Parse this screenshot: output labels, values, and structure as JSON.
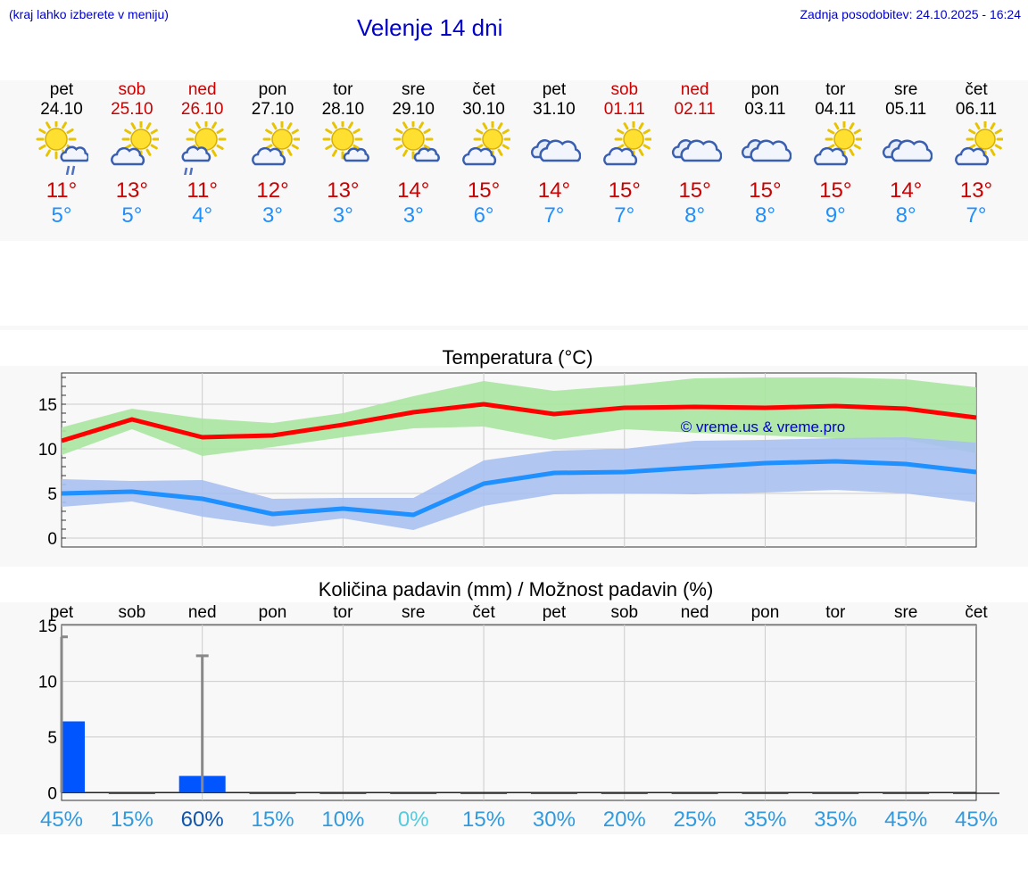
{
  "header": {
    "hint": "(kraj lahko izberete v meniju)",
    "title": "Velenje 14 dni",
    "updated": "Zadnja posodobitev: 24.10.2025 - 16:24"
  },
  "days": [
    {
      "name": "pet",
      "date": "24.10",
      "weekend": false,
      "icon": "partly-cloudy-rain-icon",
      "tmax": "11°",
      "tmin": "5°",
      "precip_pct": "45%"
    },
    {
      "name": "sob",
      "date": "25.10",
      "weekend": true,
      "icon": "partly-cloudy-icon",
      "tmax": "13°",
      "tmin": "5°",
      "precip_pct": "15%"
    },
    {
      "name": "ned",
      "date": "26.10",
      "weekend": true,
      "icon": "sun-rain-icon",
      "tmax": "11°",
      "tmin": "4°",
      "precip_pct": "60%"
    },
    {
      "name": "pon",
      "date": "27.10",
      "weekend": false,
      "icon": "partly-cloudy-icon",
      "tmax": "12°",
      "tmin": "3°",
      "precip_pct": "15%"
    },
    {
      "name": "tor",
      "date": "28.10",
      "weekend": false,
      "icon": "sun-small-cloud-icon",
      "tmax": "13°",
      "tmin": "3°",
      "precip_pct": "10%"
    },
    {
      "name": "sre",
      "date": "29.10",
      "weekend": false,
      "icon": "sun-small-cloud-icon",
      "tmax": "14°",
      "tmin": "3°",
      "precip_pct": "0%"
    },
    {
      "name": "čet",
      "date": "30.10",
      "weekend": false,
      "icon": "partly-cloudy-icon",
      "tmax": "15°",
      "tmin": "6°",
      "precip_pct": "15%"
    },
    {
      "name": "pet",
      "date": "31.10",
      "weekend": false,
      "icon": "cloudy-icon",
      "tmax": "14°",
      "tmin": "7°",
      "precip_pct": "30%"
    },
    {
      "name": "sob",
      "date": "01.11",
      "weekend": true,
      "icon": "partly-cloudy-icon",
      "tmax": "15°",
      "tmin": "7°",
      "precip_pct": "20%"
    },
    {
      "name": "ned",
      "date": "02.11",
      "weekend": true,
      "icon": "cloudy-icon",
      "tmax": "15°",
      "tmin": "8°",
      "precip_pct": "25%"
    },
    {
      "name": "pon",
      "date": "03.11",
      "weekend": false,
      "icon": "cloudy-icon",
      "tmax": "15°",
      "tmin": "8°",
      "precip_pct": "35%"
    },
    {
      "name": "tor",
      "date": "04.11",
      "weekend": false,
      "icon": "partly-cloudy-icon",
      "tmax": "15°",
      "tmin": "9°",
      "precip_pct": "35%"
    },
    {
      "name": "sre",
      "date": "05.11",
      "weekend": false,
      "icon": "cloudy-icon",
      "tmax": "14°",
      "tmin": "8°",
      "precip_pct": "45%"
    },
    {
      "name": "čet",
      "date": "06.11",
      "weekend": false,
      "icon": "partly-cloudy-icon",
      "tmax": "13°",
      "tmin": "7°",
      "precip_pct": "45%"
    }
  ],
  "colors": {
    "max": "#ff0000",
    "min": "#1e90ff",
    "max_band": "#a8e6a0",
    "min_band": "#a8c0f0",
    "bar": "#0055ff",
    "weekend": "#cc0000"
  },
  "chart_data": [
    {
      "type": "line",
      "title": "Temperatura (°C)",
      "watermark": "© vreme.us & vreme.pro",
      "categories": [
        "pet",
        "sob",
        "ned",
        "pon",
        "tor",
        "sre",
        "čet",
        "pet",
        "sob",
        "ned",
        "pon",
        "tor",
        "sre",
        "čet"
      ],
      "ylim": [
        -1,
        18.5
      ],
      "yticks": [
        "0",
        "5",
        "10",
        "15"
      ],
      "series": [
        {
          "name": "max",
          "values": [
            10.9,
            13.3,
            11.3,
            11.5,
            12.7,
            14.1,
            15.0,
            13.9,
            14.6,
            14.7,
            14.6,
            14.8,
            14.5,
            13.5
          ],
          "band_low": [
            9.3,
            12.2,
            9.2,
            10.2,
            11.3,
            12.3,
            12.5,
            11.0,
            12.2,
            11.8,
            11.5,
            11.2,
            11.0,
            9.5
          ],
          "band_high": [
            12.4,
            14.5,
            13.4,
            12.9,
            14.0,
            15.9,
            17.6,
            16.5,
            17.1,
            17.9,
            18.0,
            18.0,
            17.8,
            16.9
          ]
        },
        {
          "name": "min",
          "values": [
            5.0,
            5.2,
            4.4,
            2.7,
            3.3,
            2.6,
            6.1,
            7.3,
            7.4,
            7.9,
            8.4,
            8.6,
            8.3,
            7.4
          ],
          "band_low": [
            3.5,
            4.1,
            2.4,
            1.3,
            2.2,
            0.9,
            3.6,
            4.9,
            5.0,
            4.9,
            5.1,
            5.4,
            5.0,
            4.0
          ],
          "band_high": [
            6.6,
            6.4,
            6.5,
            4.4,
            4.5,
            4.5,
            8.7,
            9.8,
            10.0,
            10.9,
            11.0,
            11.2,
            11.3,
            10.7
          ]
        }
      ]
    },
    {
      "type": "bar",
      "title": "Količina padavin (mm) / Možnost padavin (%)",
      "categories": [
        "pet",
        "sob",
        "ned",
        "pon",
        "tor",
        "sre",
        "čet",
        "pet",
        "sob",
        "ned",
        "pon",
        "tor",
        "sre",
        "čet"
      ],
      "ylim": [
        -0.7,
        15.1
      ],
      "yticks": [
        "0",
        "5",
        "10",
        "15"
      ],
      "values": [
        6.4,
        0,
        1.5,
        0,
        0,
        0,
        0,
        0,
        0,
        0,
        0,
        0,
        0,
        0
      ],
      "error_high": [
        14,
        0,
        12.3,
        0,
        0,
        0,
        0,
        0,
        0,
        0,
        0,
        0,
        0,
        0
      ],
      "probability": [
        45,
        15,
        60,
        15,
        10,
        0,
        15,
        30,
        20,
        25,
        35,
        35,
        45,
        45
      ]
    }
  ]
}
